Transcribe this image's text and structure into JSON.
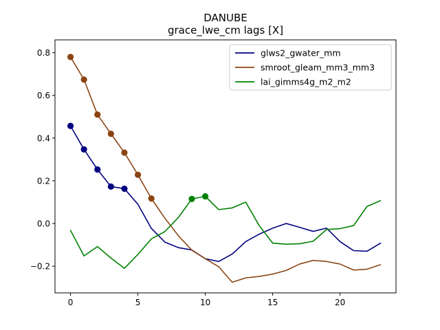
{
  "chart_data": {
    "type": "line",
    "title": "DANUBE",
    "subtitle": "grace_lwe_cm lags [X]",
    "xlabel": "",
    "ylabel": "",
    "xlim": [
      -1.15,
      24.15
    ],
    "ylim": [
      -0.325,
      0.86
    ],
    "x_ticks": [
      0,
      5,
      10,
      15,
      20
    ],
    "y_ticks": [
      -0.2,
      0.0,
      0.2,
      0.4,
      0.6,
      0.8
    ],
    "x_tick_labels": [
      "0",
      "5",
      "10",
      "15",
      "20"
    ],
    "y_tick_labels": [
      "−0.2",
      "0.0",
      "0.2",
      "0.4",
      "0.6",
      "0.8"
    ],
    "legend_position": "top-right",
    "grid": false,
    "x": [
      0,
      1,
      2,
      3,
      4,
      5,
      6,
      7,
      8,
      9,
      10,
      11,
      12,
      13,
      14,
      15,
      16,
      17,
      18,
      19,
      20,
      21,
      22,
      23
    ],
    "series": [
      {
        "name": "glws2_gwater_mm",
        "color": "#00007f",
        "values": [
          0.457,
          0.347,
          0.253,
          0.173,
          0.163,
          0.09,
          -0.023,
          -0.087,
          -0.113,
          -0.124,
          -0.165,
          -0.178,
          -0.143,
          -0.085,
          -0.05,
          -0.022,
          0.0,
          -0.018,
          -0.037,
          -0.022,
          -0.085,
          -0.127,
          -0.13,
          -0.092
        ],
        "markers": [
          0,
          1,
          2,
          3,
          4
        ]
      },
      {
        "name": "smroot_gleam_mm3_mm3",
        "color": "#8b4513",
        "values": [
          0.78,
          0.674,
          0.51,
          0.42,
          0.332,
          0.228,
          0.117,
          0.025,
          -0.057,
          -0.125,
          -0.165,
          -0.203,
          -0.275,
          -0.255,
          -0.248,
          -0.237,
          -0.22,
          -0.19,
          -0.173,
          -0.178,
          -0.19,
          -0.218,
          -0.214,
          -0.193
        ],
        "markers": [
          0,
          1,
          2,
          3,
          4,
          5,
          6
        ]
      },
      {
        "name": "lai_gimms4g_m2_m2",
        "color": "#008000",
        "values": [
          -0.032,
          -0.152,
          -0.108,
          -0.162,
          -0.21,
          -0.145,
          -0.072,
          -0.038,
          0.028,
          0.115,
          0.127,
          0.065,
          0.073,
          0.1,
          -0.01,
          -0.092,
          -0.097,
          -0.095,
          -0.083,
          -0.028,
          -0.024,
          -0.01,
          0.08,
          0.107
        ],
        "markers": [
          9,
          10
        ]
      }
    ]
  }
}
